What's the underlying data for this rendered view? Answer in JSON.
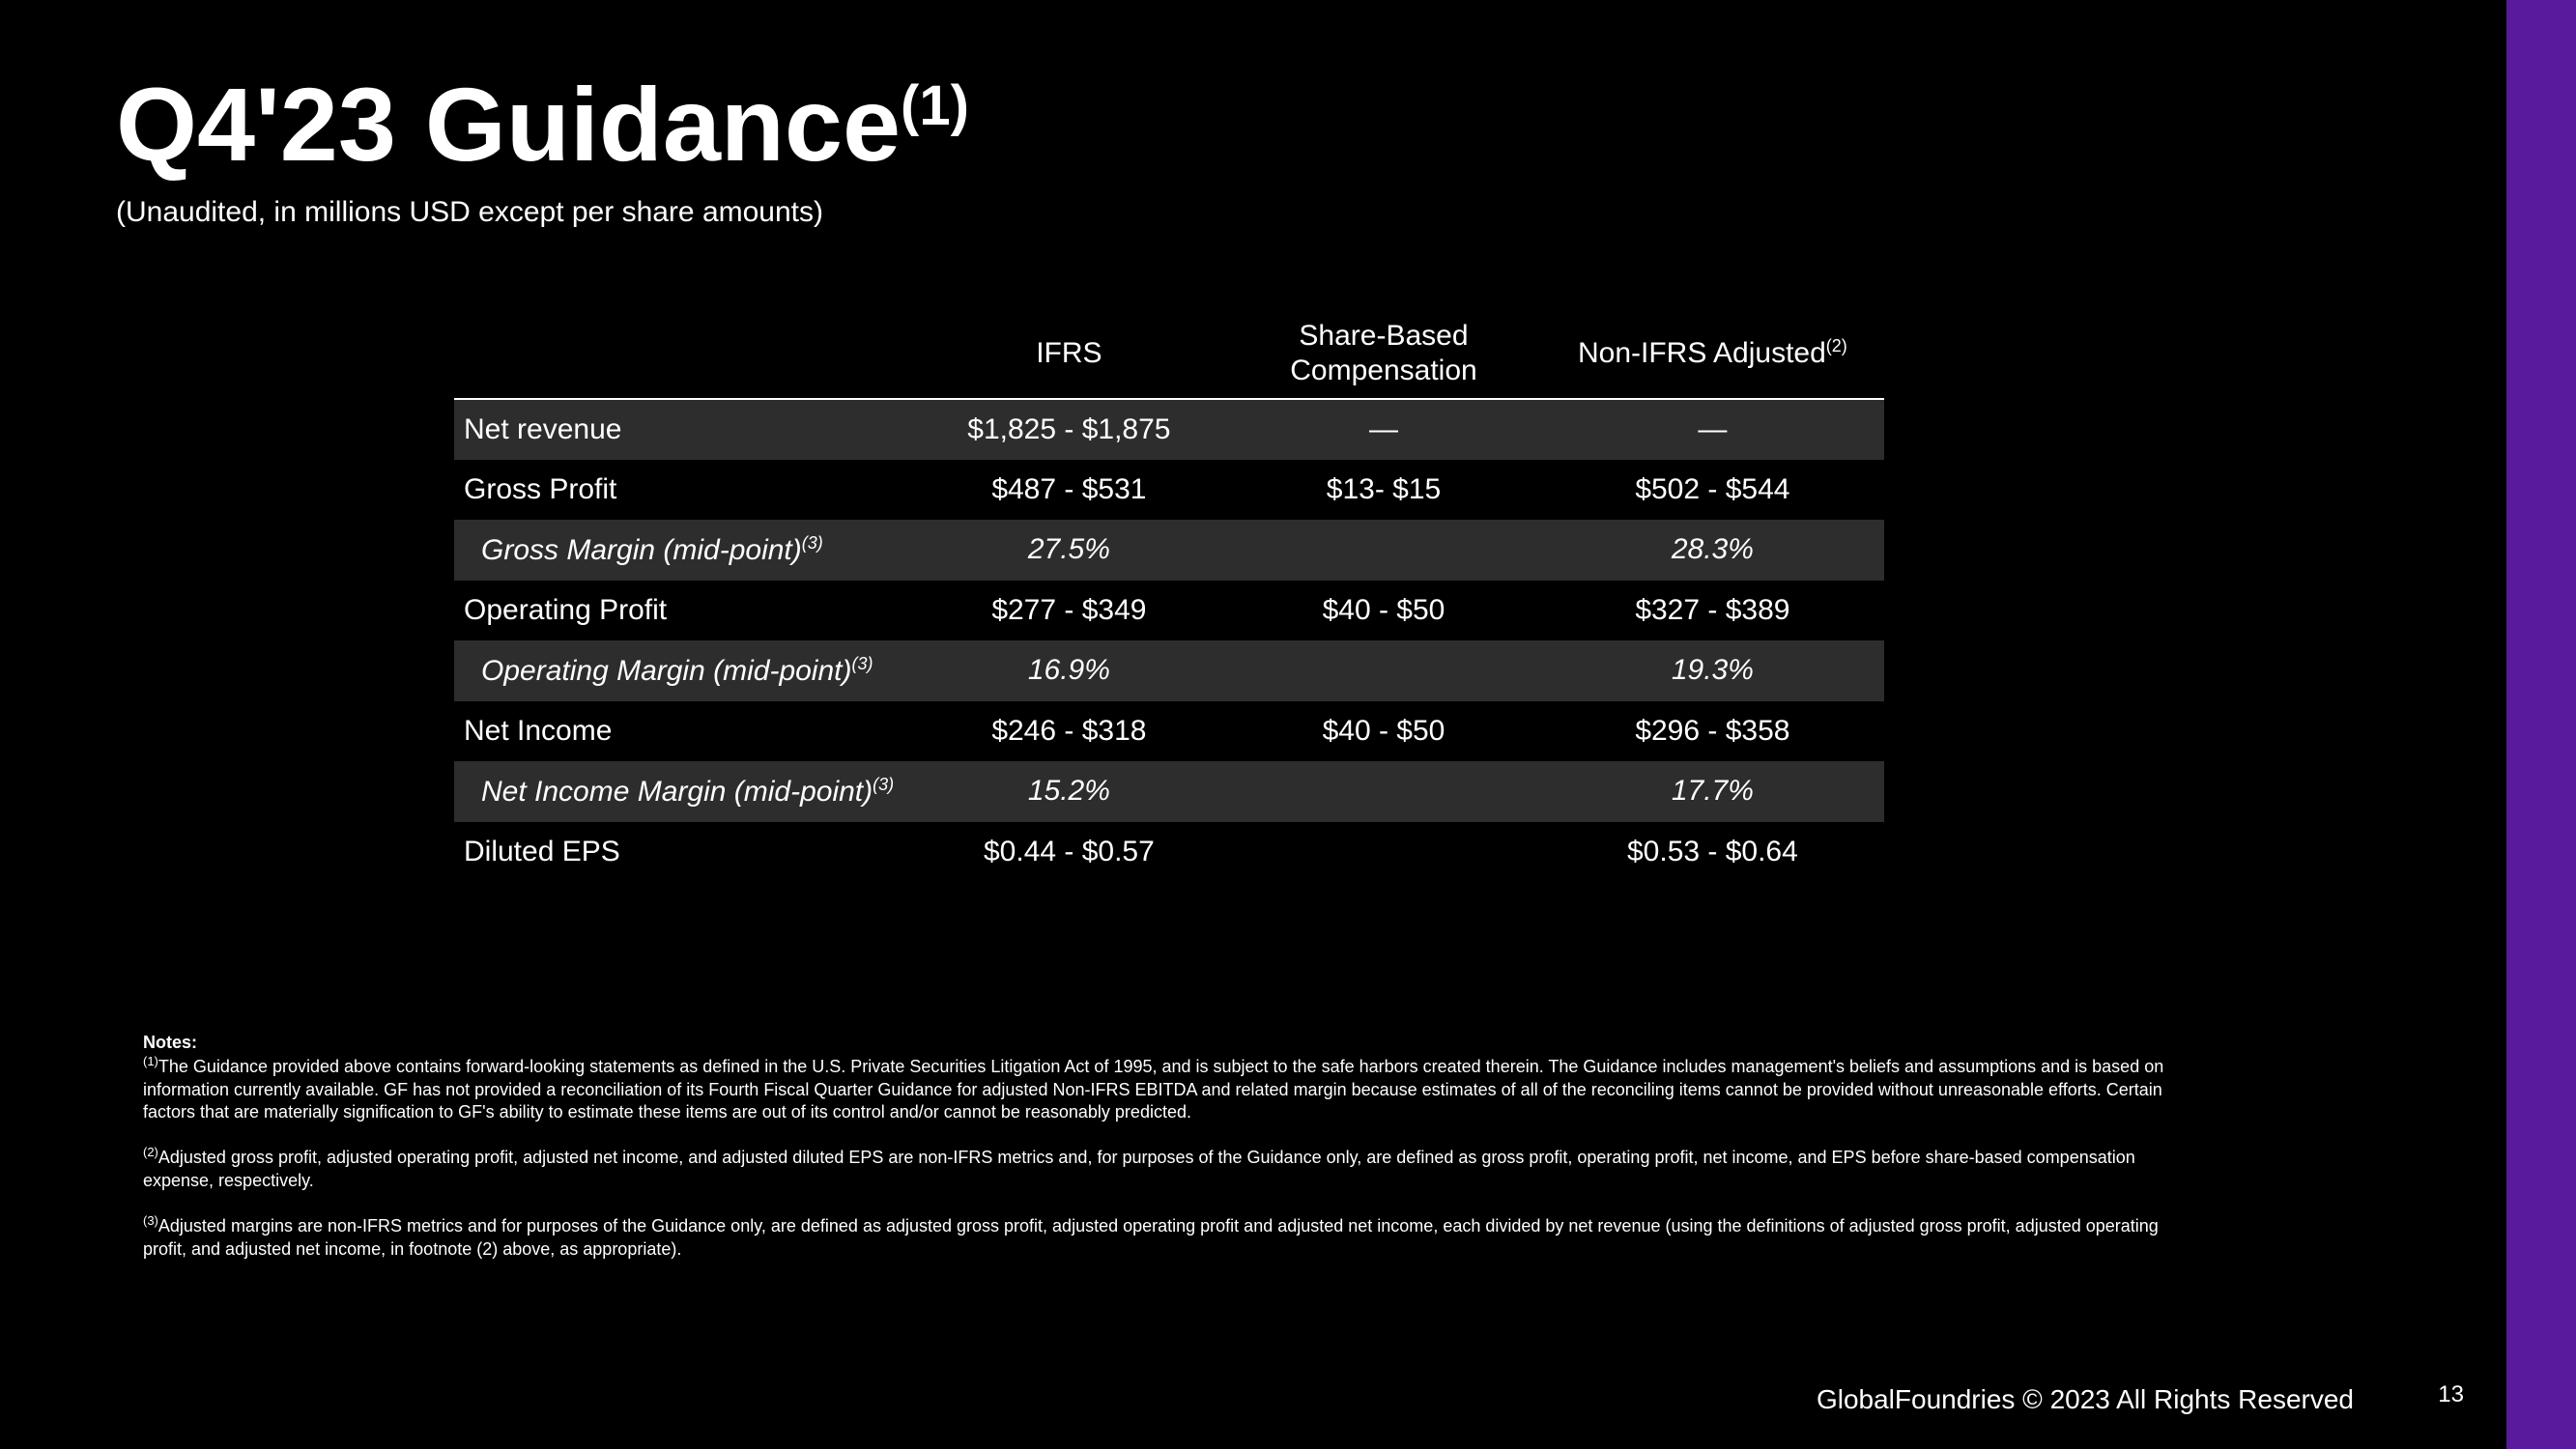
{
  "title": "Q4'23 Guidance",
  "title_sup": "(1)",
  "subtitle": "(Unaudited, in millions USD except per share amounts)",
  "table": {
    "headers": {
      "label": "",
      "ifrs": "IFRS",
      "sbc_line1": "Share-Based",
      "sbc_line2": "Compensation",
      "nonifrs": "Non-IFRS Adjusted",
      "nonifrs_sup": "(2)"
    },
    "rows": [
      {
        "label": "Net revenue",
        "ifrs": "$1,825 - $1,875",
        "sbc": "—",
        "nonifrs": "—",
        "shaded": true,
        "indent": false,
        "sup": ""
      },
      {
        "label": "Gross Profit",
        "ifrs": "$487 - $531",
        "sbc": "$13- $15",
        "nonifrs": "$502 - $544",
        "shaded": false,
        "indent": false,
        "sup": ""
      },
      {
        "label": "Gross Margin (mid-point)",
        "ifrs": "27.5%",
        "sbc": "",
        "nonifrs": "28.3%",
        "shaded": true,
        "indent": true,
        "sup": "(3)"
      },
      {
        "label": "Operating Profit",
        "ifrs": "$277 - $349",
        "sbc": "$40 - $50",
        "nonifrs": "$327 - $389",
        "shaded": false,
        "indent": false,
        "sup": ""
      },
      {
        "label": "Operating Margin (mid-point)",
        "ifrs": "16.9%",
        "sbc": "",
        "nonifrs": "19.3%",
        "shaded": true,
        "indent": true,
        "sup": "(3)"
      },
      {
        "label": "Net Income",
        "ifrs": "$246 - $318",
        "sbc": "$40 - $50",
        "nonifrs": "$296 - $358",
        "shaded": false,
        "indent": false,
        "sup": ""
      },
      {
        "label": "Net Income Margin (mid-point)",
        "ifrs": "15.2%",
        "sbc": "",
        "nonifrs": "17.7%",
        "shaded": true,
        "indent": true,
        "sup": "(3)"
      },
      {
        "label": "Diluted EPS",
        "ifrs": "$0.44 - $0.57",
        "sbc": "",
        "nonifrs": "$0.53 - $0.64",
        "shaded": false,
        "indent": false,
        "sup": ""
      }
    ]
  },
  "notes": {
    "label": "Notes:",
    "items": [
      {
        "sup": "(1)",
        "text": "The Guidance provided above contains forward-looking statements as defined in the U.S. Private Securities Litigation Act of 1995, and is subject to the safe harbors created therein. The Guidance includes management's beliefs and assumptions and is based on information currently available. GF has not provided a reconciliation of its Fourth Fiscal Quarter Guidance for adjusted Non-IFRS EBITDA and related margin because estimates of all of the reconciling items cannot be provided without unreasonable efforts. Certain factors that are materially signification to GF's ability to estimate these items are out of its control and/or cannot be reasonably predicted.",
        "spaced": false
      },
      {
        "sup": "(2)",
        "text": "Adjusted gross profit, adjusted operating profit, adjusted net income, and adjusted diluted EPS  are non-IFRS metrics and, for purposes of the Guidance only, are defined as gross profit, operating profit, net income, and EPS before share-based compensation expense, respectively.",
        "spaced": true
      },
      {
        "sup": "(3)",
        "text": "Adjusted margins are non-IFRS metrics and for purposes of the Guidance only, are defined as adjusted gross profit, adjusted operating profit and adjusted net income, each divided by net revenue  (using the definitions of adjusted gross profit, adjusted operating profit, and adjusted net income, in footnote (2) above, as appropriate).",
        "spaced": true
      }
    ]
  },
  "footer": {
    "copyright": "GlobalFoundries © 2023 All Rights Reserved",
    "page": "13"
  },
  "colors": {
    "background": "#000000",
    "text": "#ffffff",
    "shaded_row": "#2d2d2d",
    "accent": "#5a1a9e"
  }
}
